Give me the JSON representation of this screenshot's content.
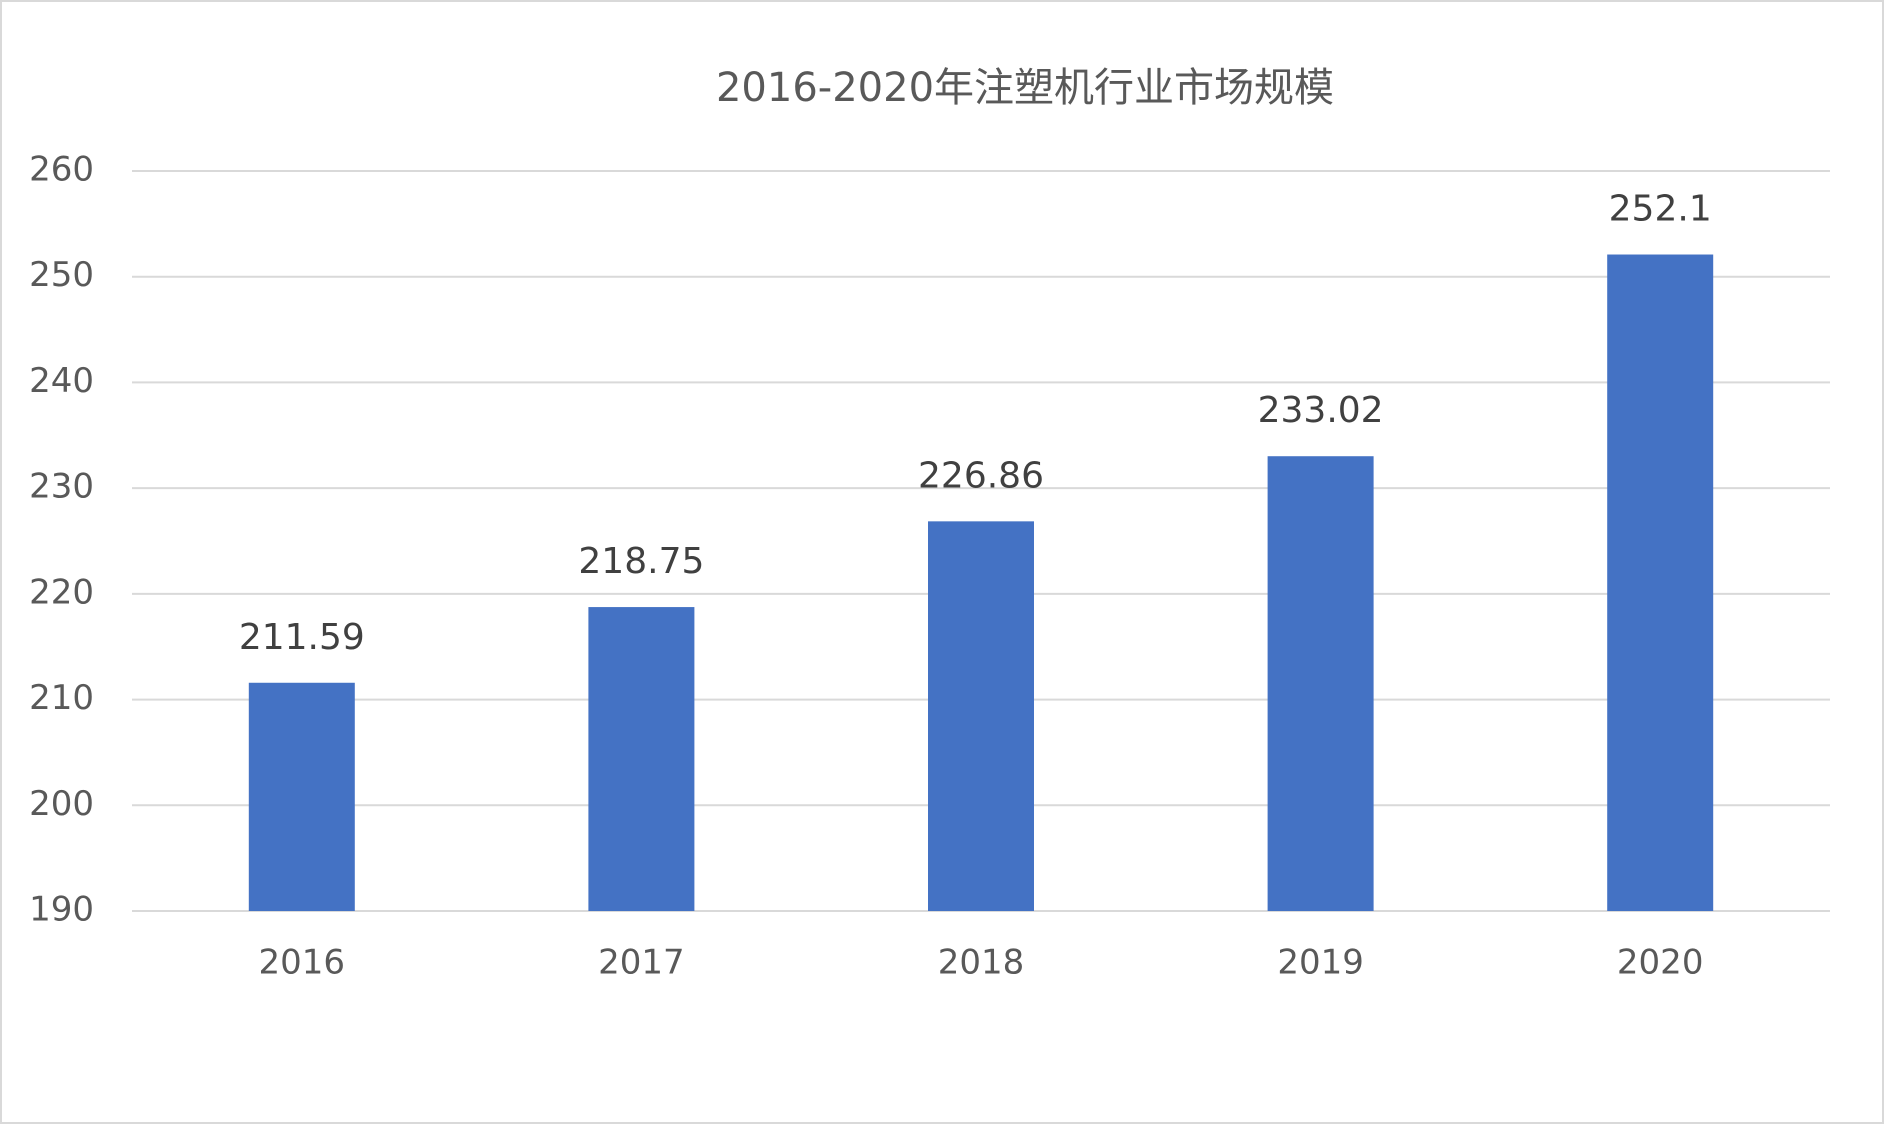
{
  "chart_data": {
    "type": "bar",
    "title": "2016-2020年注塑机行业市场规模",
    "categories": [
      "2016",
      "2017",
      "2018",
      "2019",
      "2020"
    ],
    "values": [
      211.59,
      218.75,
      226.86,
      233.02,
      252.1
    ],
    "color": "#4472c4",
    "ylim": [
      190,
      260
    ],
    "yticks": [
      190,
      200,
      210,
      220,
      230,
      240,
      250,
      260
    ],
    "grid": true
  }
}
